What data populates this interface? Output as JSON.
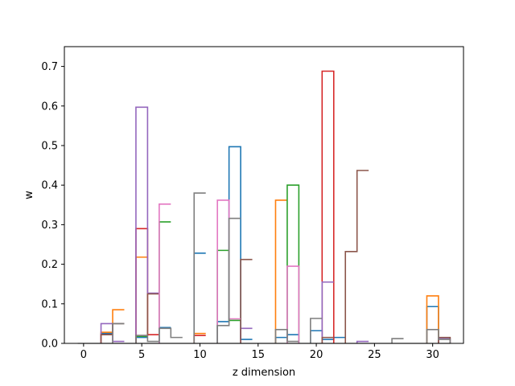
{
  "chart_data": {
    "type": "bar",
    "histtype": "step",
    "xlabel": "z dimension",
    "ylabel": "w",
    "xlim": [
      -1.65,
      32.65
    ],
    "ylim": [
      0,
      0.75
    ],
    "xticks": [
      0,
      5,
      10,
      15,
      20,
      25,
      30
    ],
    "yticks": [
      0.0,
      0.1,
      0.2,
      0.3,
      0.4,
      0.5,
      0.6,
      0.7
    ],
    "grid": false,
    "legend": "none",
    "bin_width": 1,
    "series": [
      {
        "color": "#1f77b4",
        "bins": [
          [
            2,
            0.025
          ],
          [
            5,
            0.015
          ],
          [
            7,
            0.04
          ],
          [
            10,
            0.228
          ],
          [
            12,
            0.055
          ],
          [
            13,
            0.497
          ],
          [
            14,
            0.01
          ],
          [
            17,
            0.015
          ],
          [
            18,
            0.022
          ],
          [
            20,
            0.032
          ],
          [
            21,
            0.01
          ],
          [
            22,
            0.015
          ],
          [
            30,
            0.093
          ]
        ]
      },
      {
        "color": "#ff7f0e",
        "bins": [
          [
            2,
            0.028
          ],
          [
            3,
            0.085
          ],
          [
            5,
            0.218
          ],
          [
            10,
            0.025
          ],
          [
            17,
            0.362
          ],
          [
            30,
            0.12
          ]
        ]
      },
      {
        "color": "#2ca02c",
        "bins": [
          [
            5,
            0.018
          ],
          [
            7,
            0.307
          ],
          [
            12,
            0.235
          ],
          [
            13,
            0.058
          ],
          [
            18,
            0.4
          ]
        ]
      },
      {
        "color": "#d62728",
        "bins": [
          [
            2,
            0.022
          ],
          [
            5,
            0.29
          ],
          [
            6,
            0.022
          ],
          [
            10,
            0.02
          ],
          [
            21,
            0.688
          ]
        ]
      },
      {
        "color": "#9467bd",
        "bins": [
          [
            2,
            0.05
          ],
          [
            3,
            0.005
          ],
          [
            5,
            0.597
          ],
          [
            6,
            0.127
          ],
          [
            14,
            0.038
          ],
          [
            21,
            0.155
          ],
          [
            24,
            0.005
          ],
          [
            31,
            0.013
          ]
        ]
      },
      {
        "color": "#8c564b",
        "bins": [
          [
            2,
            0.022
          ],
          [
            3,
            0.05
          ],
          [
            5,
            0.02
          ],
          [
            6,
            0.125
          ],
          [
            14,
            0.212
          ],
          [
            21,
            0.015
          ],
          [
            23,
            0.232
          ],
          [
            24,
            0.437
          ],
          [
            31,
            0.015
          ]
        ]
      },
      {
        "color": "#e377c2",
        "bins": [
          [
            7,
            0.352
          ],
          [
            12,
            0.362
          ],
          [
            13,
            0.062
          ],
          [
            18,
            0.195
          ]
        ]
      },
      {
        "color": "#7f7f7f",
        "bins": [
          [
            3,
            0.05
          ],
          [
            5,
            0.02
          ],
          [
            6,
            0.005
          ],
          [
            7,
            0.038
          ],
          [
            8,
            0.015
          ],
          [
            10,
            0.38
          ],
          [
            12,
            0.045
          ],
          [
            13,
            0.316
          ],
          [
            17,
            0.035
          ],
          [
            18,
            0.005
          ],
          [
            20,
            0.063
          ],
          [
            27,
            0.012
          ],
          [
            30,
            0.035
          ],
          [
            31,
            0.01
          ]
        ]
      }
    ]
  }
}
